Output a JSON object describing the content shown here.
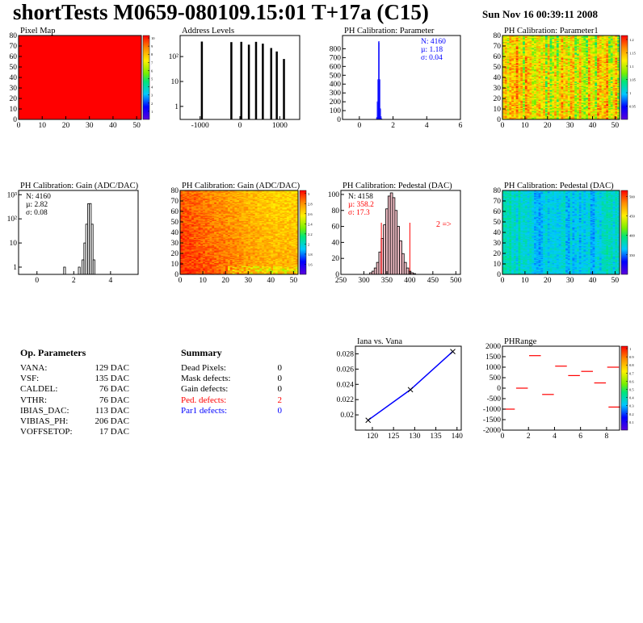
{
  "header": {
    "title": "shortTests M0659-080109.15:01 T+17a (C15)",
    "timestamp": "Sun Nov 16 00:39:11 2008"
  },
  "colors": {
    "pixelmap_fill": "#ff0000",
    "ped_defects": "#ff0000",
    "par1_defects": "#0000ff",
    "stats_blue": "#0000ff",
    "stats_red": "#ff0000"
  },
  "op_parameters": {
    "title": "Op. Parameters",
    "rows": [
      {
        "name": "VANA:",
        "value": "129 DAC"
      },
      {
        "name": "VSF:",
        "value": "135 DAC"
      },
      {
        "name": "CALDEL:",
        "value": "76 DAC"
      },
      {
        "name": "VTHR:",
        "value": "76 DAC"
      },
      {
        "name": "IBIAS_DAC:",
        "value": "113 DAC"
      },
      {
        "name": "VIBIAS_PH:",
        "value": "206 DAC"
      },
      {
        "name": "VOFFSETOP:",
        "value": "17 DAC"
      }
    ]
  },
  "summary": {
    "title": "Summary",
    "rows": [
      {
        "name": "Dead Pixels:",
        "value": "0"
      },
      {
        "name": "Mask defects:",
        "value": "0"
      },
      {
        "name": "Gain defects:",
        "value": "0"
      },
      {
        "name": "Ped. defects:",
        "value": "2"
      },
      {
        "name": "Par1 defects:",
        "value": "0"
      }
    ]
  },
  "chart_data": [
    {
      "id": "pixel-map",
      "type": "heatmap",
      "title": "Pixel Map",
      "xlim": [
        0,
        52
      ],
      "ylim": [
        0,
        80
      ],
      "xticks": [
        0,
        10,
        20,
        30,
        40,
        50
      ],
      "yticks": [
        0,
        10,
        20,
        30,
        40,
        50,
        60,
        70,
        80
      ],
      "palette": "uniform",
      "value": 10,
      "zticks": [
        "1",
        "2",
        "3",
        "4",
        "5",
        "6",
        "7",
        "8",
        "9",
        "10"
      ]
    },
    {
      "id": "address-levels",
      "type": "bar",
      "title": "Address Levels",
      "xlim": [
        -1500,
        1500
      ],
      "log_y": true,
      "ylim": [
        0.3,
        700
      ],
      "xticks": [
        -1000,
        0,
        1000
      ],
      "yticks": [
        {
          "v": 1,
          "label": "1"
        },
        {
          "v": 10,
          "label": "10"
        },
        {
          "v": 100,
          "label": "10²"
        }
      ],
      "peaks": [
        {
          "x": -960,
          "y": 400
        },
        {
          "x": -220,
          "y": 380
        },
        {
          "x": 30,
          "y": 390
        },
        {
          "x": 220,
          "y": 300
        },
        {
          "x": 400,
          "y": 390
        },
        {
          "x": 570,
          "y": 330
        },
        {
          "x": 780,
          "y": 220
        },
        {
          "x": 920,
          "y": 160
        },
        {
          "x": 1100,
          "y": 80
        }
      ]
    },
    {
      "id": "ph-par",
      "type": "bar",
      "title": "PH Calibration: Parameter",
      "xlim": [
        -1,
        6
      ],
      "ylim": [
        0,
        950
      ],
      "xticks": [
        0,
        2,
        4,
        6
      ],
      "yticks": [
        0,
        100,
        200,
        300,
        400,
        500,
        600,
        700,
        800
      ],
      "x": [
        1.04,
        1.08,
        1.12,
        1.16,
        1.2,
        1.24,
        1.28,
        1.32
      ],
      "values": [
        20,
        200,
        450,
        880,
        450,
        120,
        30,
        5
      ],
      "stats": [
        "N: 4160",
        "µ: 1.18",
        "σ: 0.04"
      ]
    },
    {
      "id": "ph-par1",
      "type": "heatmap",
      "title": "PH Calibration: Parameter1",
      "xlim": [
        0,
        52
      ],
      "ylim": [
        0,
        80
      ],
      "xticks": [
        0,
        10,
        20,
        30,
        40,
        50
      ],
      "yticks": [
        0,
        10,
        20,
        30,
        40,
        50,
        60,
        70,
        80
      ],
      "palette": "warm",
      "zticks": [
        "0.95",
        "1",
        "1.05",
        "1.1",
        "1.15",
        "1.2"
      ]
    },
    {
      "id": "ph-gain",
      "type": "bar",
      "title": "PH Calibration: Gain (ADC/DAC)",
      "xlim": [
        -1,
        5.5
      ],
      "log_y": true,
      "ylim": [
        0.5,
        1500
      ],
      "xticks": [
        0,
        2,
        4
      ],
      "yticks": [
        {
          "v": 1,
          "label": "1"
        },
        {
          "v": 10,
          "label": "10"
        },
        {
          "v": 100,
          "label": "10²"
        },
        {
          "v": 1000,
          "label": "10³"
        }
      ],
      "x": [
        1.5,
        2.3,
        2.5,
        2.6,
        2.7,
        2.8,
        2.9,
        3.0,
        3.1
      ],
      "values": [
        1,
        1,
        2,
        10,
        60,
        420,
        430,
        60,
        2
      ],
      "stats": [
        "N: 4160",
        "µ: 2.82",
        "σ: 0.08"
      ]
    },
    {
      "id": "ph-gain-map",
      "type": "heatmap",
      "title": "PH Calibration: Gain (ADC/DAC)",
      "xlim": [
        0,
        52
      ],
      "ylim": [
        0,
        80
      ],
      "xticks": [
        0,
        10,
        20,
        30,
        40,
        50
      ],
      "yticks": [
        0,
        10,
        20,
        30,
        40,
        50,
        60,
        70,
        80
      ],
      "palette": "gain",
      "zticks": [
        "1.6",
        "1.8",
        "2",
        "2.2",
        "2.4",
        "2.6",
        "2.8",
        "3"
      ]
    },
    {
      "id": "ph-ped",
      "type": "bar",
      "title": "PH Calibration: Pedestal (DAC)",
      "xlim": [
        250,
        510
      ],
      "ylim": [
        0,
        105
      ],
      "xticks": [
        250,
        300,
        350,
        400,
        450,
        500
      ],
      "yticks": [
        0,
        20,
        40,
        60,
        80,
        100
      ],
      "x": [
        315,
        320,
        325,
        330,
        335,
        340,
        345,
        350,
        355,
        360,
        365,
        370,
        375,
        380,
        385,
        390,
        395,
        400,
        405,
        410
      ],
      "values": [
        2,
        4,
        8,
        15,
        28,
        45,
        62,
        82,
        98,
        102,
        96,
        80,
        60,
        42,
        26,
        15,
        8,
        4,
        2,
        1
      ],
      "cut_lines": [
        338,
        400
      ],
      "stats": [
        "N: 4158",
        "µ: 358.2",
        "σ: 17.3"
      ],
      "annotation": "2 =>"
    },
    {
      "id": "ph-ped-map",
      "type": "heatmap",
      "title": "PH Calibration: Pedestal (DAC)",
      "xlim": [
        0,
        52
      ],
      "ylim": [
        0,
        80
      ],
      "xticks": [
        0,
        10,
        20,
        30,
        40,
        50
      ],
      "yticks": [
        0,
        10,
        20,
        30,
        40,
        50,
        60,
        70,
        80
      ],
      "palette": "cool",
      "zticks": [
        "350",
        "400",
        "450",
        "500"
      ]
    },
    {
      "id": "iana-vana",
      "type": "line",
      "title": "Iana vs. Vana",
      "xlim": [
        116,
        141
      ],
      "ylim": [
        0.018,
        0.029
      ],
      "xticks": [
        120,
        125,
        130,
        135,
        140
      ],
      "yticks": [
        0.02,
        0.022,
        0.024,
        0.026,
        0.028
      ],
      "points": [
        {
          "x": 119,
          "y": 0.0193
        },
        {
          "x": 129,
          "y": 0.0233
        },
        {
          "x": 139,
          "y": 0.0283
        }
      ]
    },
    {
      "id": "ph-range",
      "type": "scatter",
      "title": "PHRange",
      "xlim": [
        0,
        9
      ],
      "ylim": [
        -2000,
        2000
      ],
      "xticks": [
        0,
        2,
        4,
        6,
        8
      ],
      "yticks": [
        -2000,
        -1500,
        -1000,
        -500,
        0,
        500,
        1000,
        1500,
        2000
      ],
      "zticks": [
        "0.1",
        "0.2",
        "0.3",
        "0.4",
        "0.5",
        "0.6",
        "0.7",
        "0.8",
        "0.9",
        "1"
      ],
      "segments": [
        {
          "x": 0.5,
          "y": -1000
        },
        {
          "x": 1.5,
          "y": 0
        },
        {
          "x": 2.5,
          "y": 1550
        },
        {
          "x": 3.5,
          "y": -300
        },
        {
          "x": 4.5,
          "y": 1050
        },
        {
          "x": 5.5,
          "y": 600
        },
        {
          "x": 6.5,
          "y": 800
        },
        {
          "x": 7.5,
          "y": 250
        },
        {
          "x": 8.5,
          "y": 1000
        },
        {
          "x": 8.6,
          "y": -900
        }
      ]
    }
  ]
}
